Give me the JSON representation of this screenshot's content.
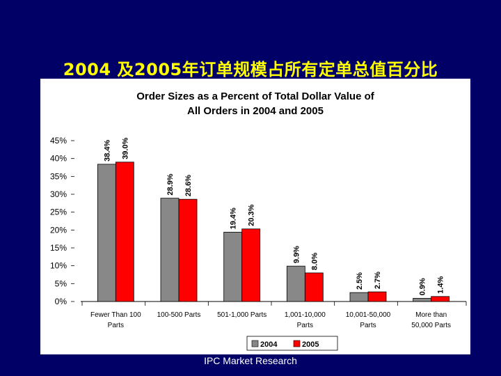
{
  "slide": {
    "title": "2004 及2005年订单规模占所有定单总值百分比",
    "footer": "IPC Market Research"
  },
  "colors": {
    "background": "#000066",
    "title": "#ffff00",
    "series_2004": "#888888",
    "series_2005": "#ff0000"
  },
  "chart_data": {
    "type": "bar",
    "title_lines": [
      "Order Sizes as a Percent of Total Dollar Value of",
      "All Orders in 2004 and 2005"
    ],
    "categories": [
      [
        "Fewer Than 100",
        "Parts"
      ],
      [
        "100-500 Parts"
      ],
      [
        "501-1,000 Parts"
      ],
      [
        "1,001-10,000",
        "Parts"
      ],
      [
        "10,001-50,000",
        "Parts"
      ],
      [
        "More than",
        "50,000 Parts"
      ]
    ],
    "series": [
      {
        "name": "2004",
        "values": [
          38.4,
          28.9,
          19.4,
          9.9,
          2.5,
          0.9
        ],
        "labels": [
          "38.4%",
          "28.9%",
          "19.4%",
          "9.9%",
          "2.5%",
          "0.9%"
        ]
      },
      {
        "name": "2005",
        "values": [
          39.0,
          28.6,
          20.3,
          8.0,
          2.7,
          1.4
        ],
        "labels": [
          "39.0%",
          "28.6%",
          "20.3%",
          "8.0%",
          "2.7%",
          "1.4%"
        ]
      }
    ],
    "ylim": [
      0,
      45
    ],
    "yticks": [
      0,
      5,
      10,
      15,
      20,
      25,
      30,
      35,
      40,
      45
    ],
    "ytick_labels": [
      "0%",
      "5%",
      "10%",
      "15%",
      "20%",
      "25%",
      "30%",
      "35%",
      "40%",
      "45%"
    ],
    "grid": false,
    "legend": "bottom"
  }
}
